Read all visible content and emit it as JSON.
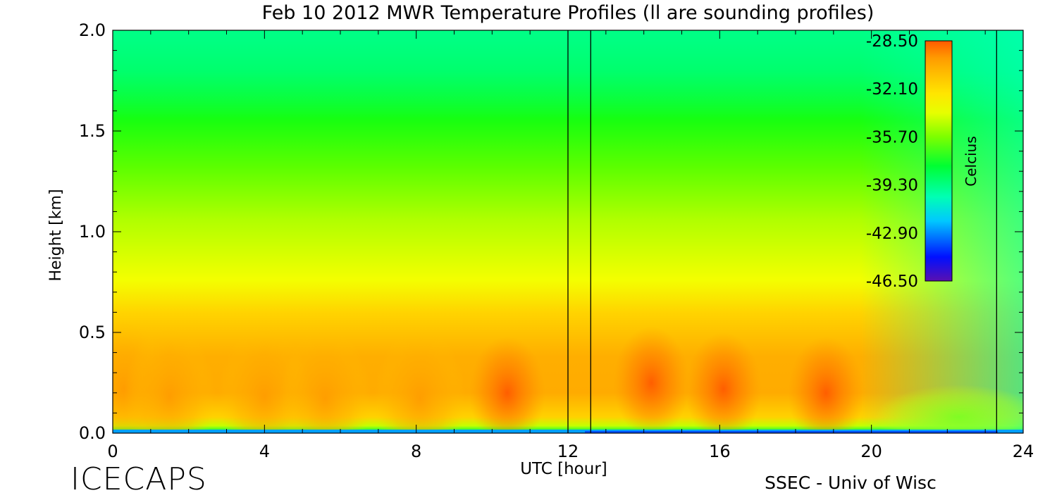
{
  "colors": {
    "scale": [
      "#5a10b0",
      "#0010ff",
      "#00c8ff",
      "#00ffb4",
      "#00ff32",
      "#7cff00",
      "#e6ff00",
      "#ffe600",
      "#ffbf00",
      "#ff9a00",
      "#ff5a00"
    ],
    "sounding_line": "#000000"
  },
  "chart_data": {
    "type": "heatmap",
    "title": "Feb 10 2012 MWR Temperature Profiles (ll are sounding profiles)",
    "xlabel": "UTC [hour]",
    "ylabel": "Height [km]",
    "xlim": [
      0,
      24
    ],
    "ylim": [
      0,
      2.0
    ],
    "x_ticks": [
      "0",
      "4",
      "8",
      "12",
      "16",
      "20",
      "24"
    ],
    "y_ticks": [
      "0.0",
      "0.5",
      "1.0",
      "1.5",
      "2.0"
    ],
    "colorbar": {
      "label": "Celcius",
      "range": [
        -46.5,
        -28.5
      ],
      "ticks": [
        "-28.50",
        "-32.10",
        "-35.70",
        "-39.30",
        "-42.90",
        "-46.50"
      ]
    },
    "sounding_profiles_utc": [
      12.0,
      12.6,
      23.3
    ],
    "grid": false,
    "legend_placement": "colorbar top-right inside plot",
    "anomaly_centers": [
      {
        "utc": 0.3,
        "height": 0.22,
        "celsius": -29.5
      },
      {
        "utc": 1.5,
        "height": 0.18,
        "celsius": -28.6
      },
      {
        "utc": 4.0,
        "height": 0.18,
        "celsius": -29.0
      },
      {
        "utc": 5.6,
        "height": 0.17,
        "celsius": -29.0
      },
      {
        "utc": 8.1,
        "height": 0.17,
        "celsius": -29.5
      },
      {
        "utc": 10.4,
        "height": 0.2,
        "celsius": -30.8
      },
      {
        "utc": 14.2,
        "height": 0.25,
        "celsius": -32.0
      },
      {
        "utc": 16.1,
        "height": 0.22,
        "celsius": -31.0
      },
      {
        "utc": 18.8,
        "height": 0.2,
        "celsius": -30.5
      }
    ]
  },
  "footer": {
    "left_logo_text": "ICECAPS",
    "right_credit": "SSEC - Univ of Wisc"
  }
}
